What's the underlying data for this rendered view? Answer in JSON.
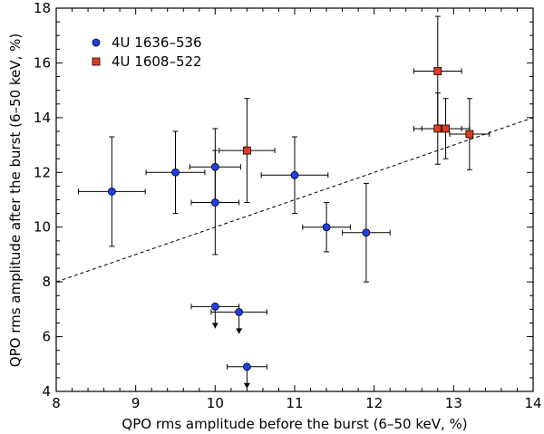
{
  "chart_data": {
    "type": "scatter",
    "xlabel": "QPO rms amplitude before the burst (6–50 keV, %)",
    "ylabel": "QPO rms amplitude after the burst (6–50 keV, %)",
    "xlim": [
      8,
      14
    ],
    "ylim": [
      4,
      18
    ],
    "x_ticks": [
      8,
      9,
      10,
      11,
      12,
      13,
      14
    ],
    "y_ticks": [
      4,
      6,
      8,
      10,
      12,
      14,
      16,
      18
    ],
    "grid": false,
    "legend_position": "top-left",
    "reference_line": {
      "style": "dashed",
      "x": [
        8,
        14
      ],
      "y": [
        8,
        14
      ]
    },
    "series": [
      {
        "name": "4U 1636–536",
        "marker": "circle",
        "color": "#1f3fe6",
        "points": [
          {
            "x": 8.7,
            "y": 11.3,
            "xerr": 0.42,
            "yerr": 2.0
          },
          {
            "x": 9.5,
            "y": 12.0,
            "xerr": 0.37,
            "yerr": 1.5
          },
          {
            "x": 10.0,
            "y": 12.2,
            "xerr": 0.32,
            "yerr": 1.4
          },
          {
            "x": 10.0,
            "y": 10.9,
            "xerr": 0.3,
            "yerr": 1.9
          },
          {
            "x": 11.0,
            "y": 11.9,
            "xerr": 0.42,
            "yerr": 1.4
          },
          {
            "x": 11.4,
            "y": 10.0,
            "xerr": 0.3,
            "yerr": 0.9
          },
          {
            "x": 11.9,
            "y": 9.8,
            "xerr": 0.3,
            "yerr": 1.8
          },
          {
            "x": 10.0,
            "y": 7.1,
            "xerr": 0.3,
            "upper_limit": true
          },
          {
            "x": 10.3,
            "y": 6.9,
            "xerr": 0.35,
            "upper_limit": true
          },
          {
            "x": 10.4,
            "y": 4.9,
            "xerr": 0.25,
            "upper_limit": true
          }
        ]
      },
      {
        "name": "4U 1608–522",
        "marker": "square",
        "color": "#e23a22",
        "points": [
          {
            "x": 10.4,
            "y": 12.8,
            "xerr": 0.35,
            "yerr": 1.9
          },
          {
            "x": 12.8,
            "y": 15.7,
            "xerr": 0.3,
            "yerr": 2.0
          },
          {
            "x": 12.8,
            "y": 13.6,
            "xerr": 0.3,
            "yerr": 1.3
          },
          {
            "x": 12.9,
            "y": 13.6,
            "xerr": 0.3,
            "yerr": 1.1
          },
          {
            "x": 13.2,
            "y": 13.4,
            "xerr": 0.25,
            "yerr": 1.3
          }
        ]
      }
    ]
  }
}
